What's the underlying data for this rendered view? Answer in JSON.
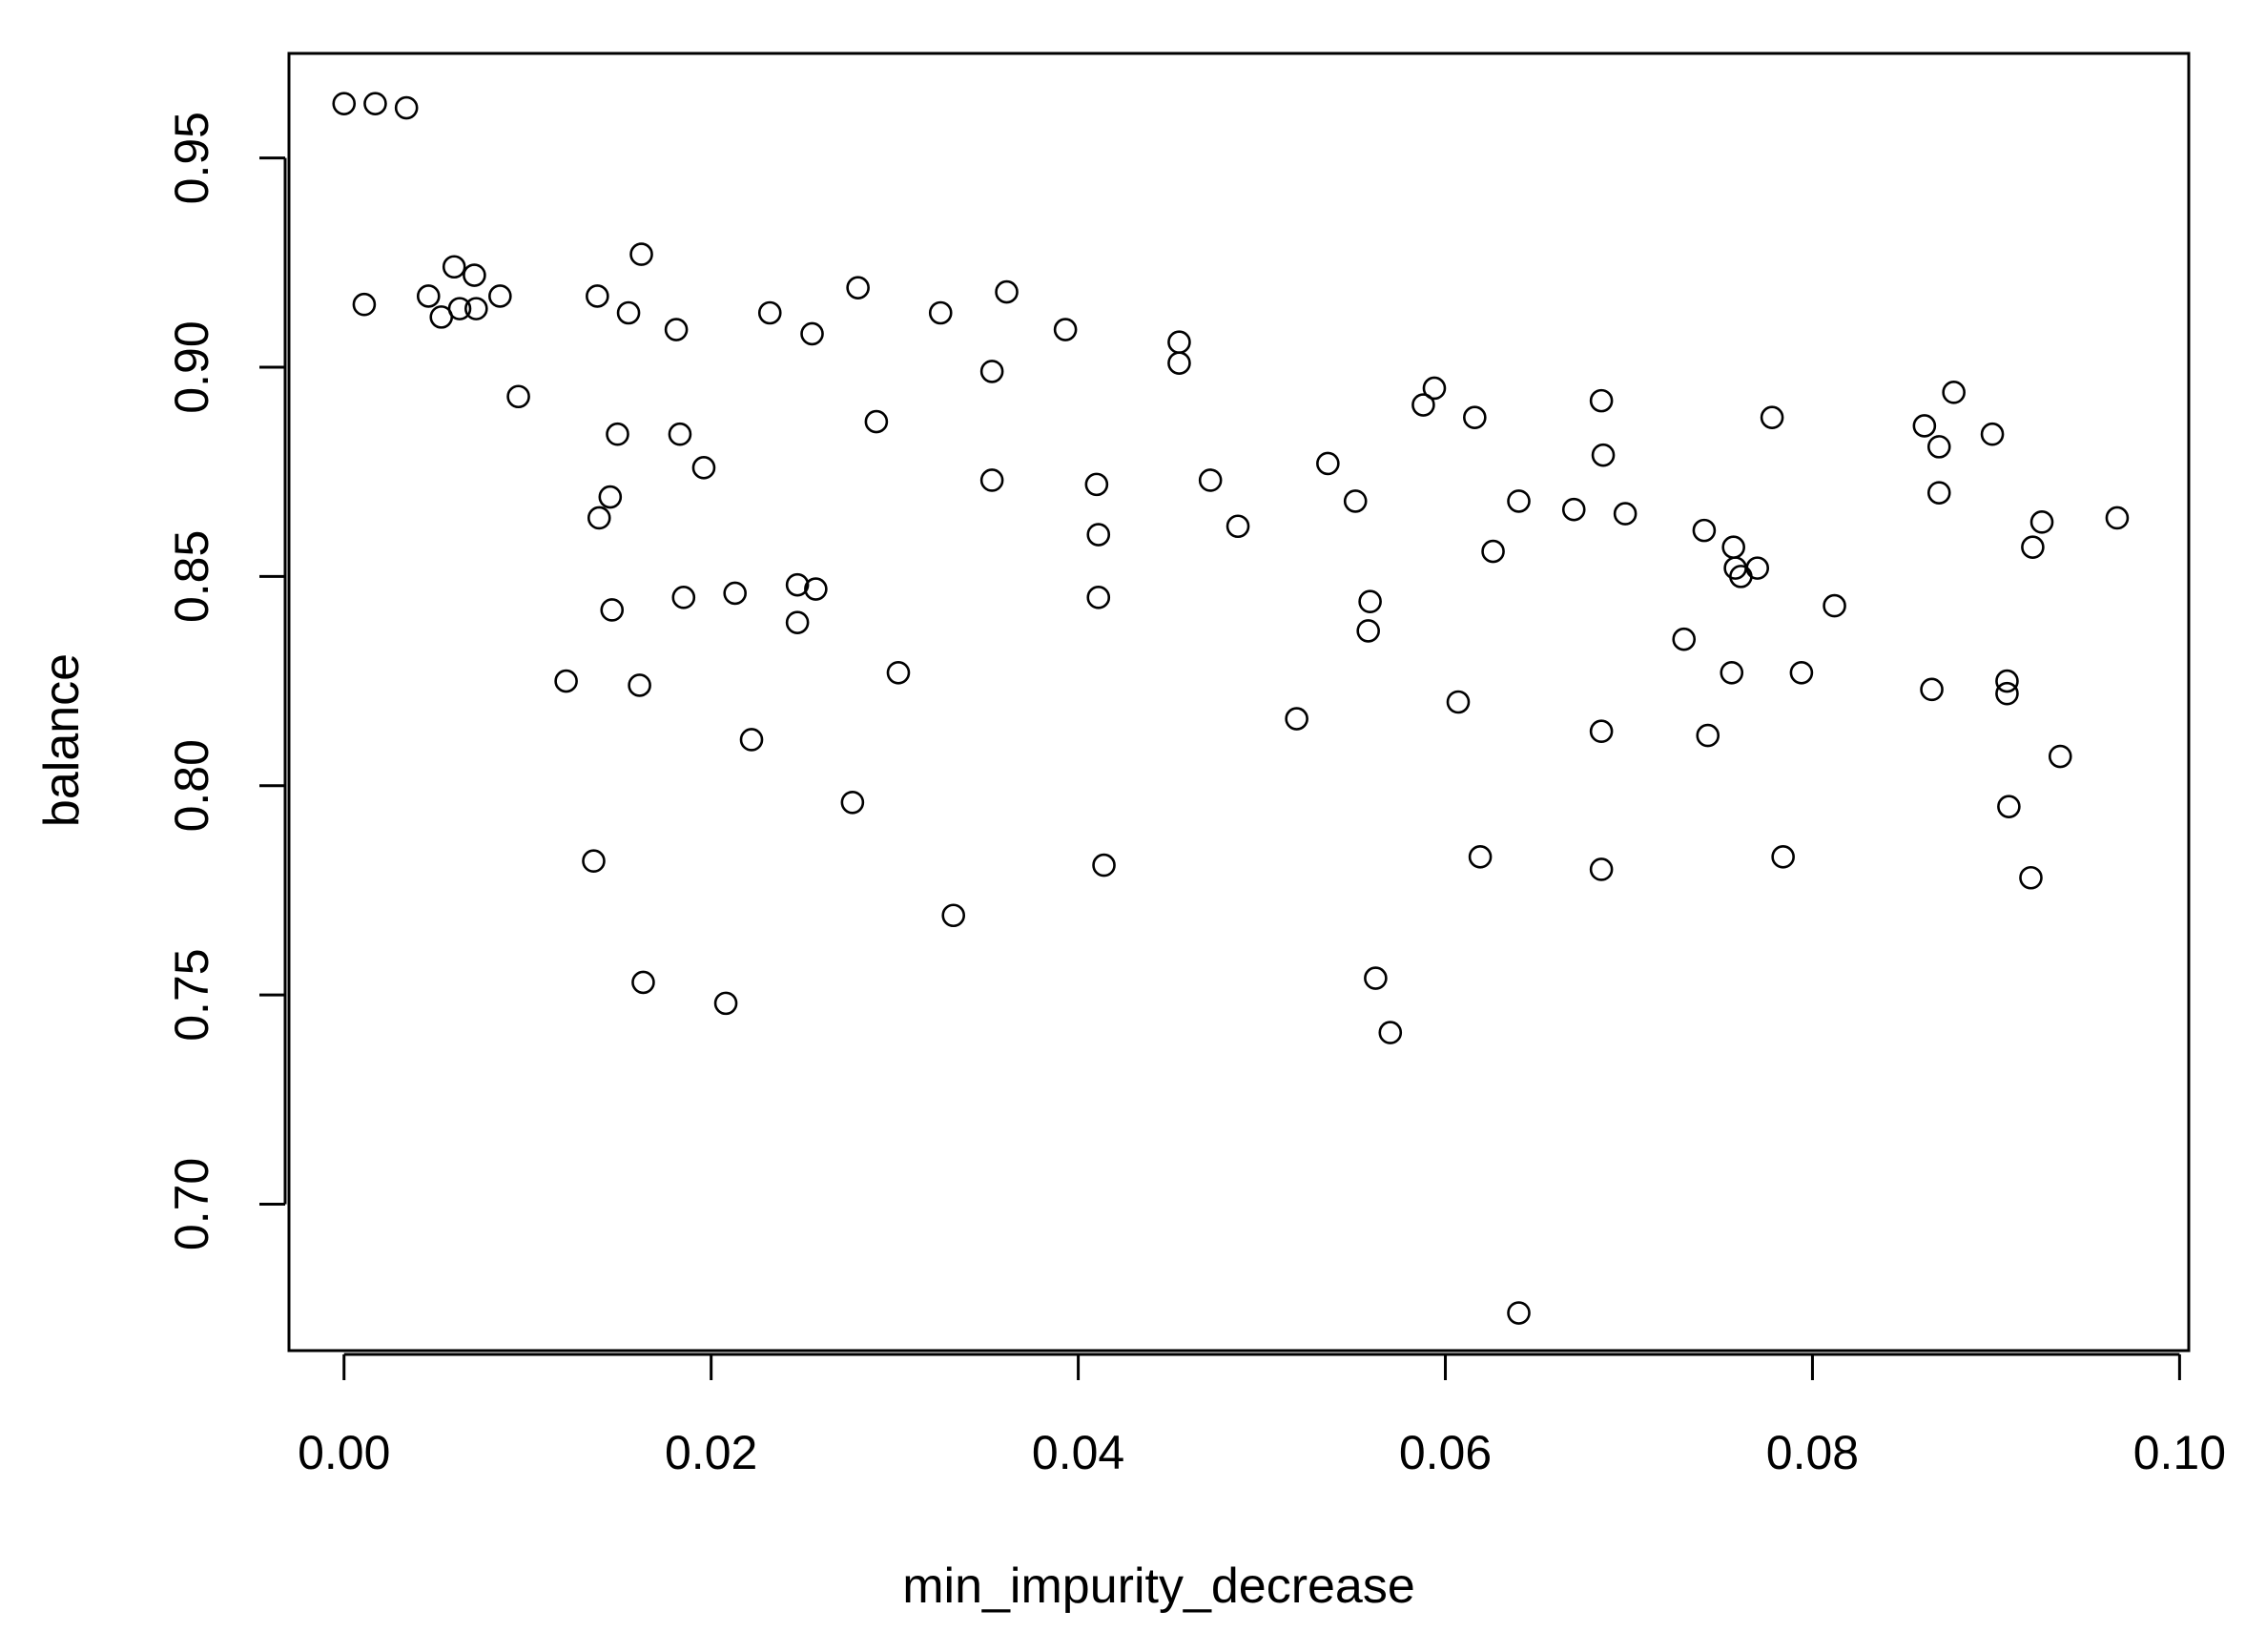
{
  "chart_data": {
    "type": "scatter",
    "title": "",
    "xlabel": "min_impurity_decrease",
    "ylabel": "balance",
    "xlim": [
      -0.003,
      0.1005
    ],
    "ylim": [
      0.665,
      0.975
    ],
    "x_ticks": [
      "0.00",
      "0.02",
      "0.04",
      "0.06",
      "0.08",
      "0.10"
    ],
    "y_ticks": [
      "0.70",
      "0.75",
      "0.80",
      "0.85",
      "0.90",
      "0.95"
    ],
    "grid": false,
    "legend": "none",
    "marker": "open-circle",
    "color": "#000000",
    "points": [
      [
        0.0,
        0.963
      ],
      [
        0.0017,
        0.963
      ],
      [
        0.0034,
        0.962
      ],
      [
        0.0011,
        0.915
      ],
      [
        0.0046,
        0.917
      ],
      [
        0.0053,
        0.912
      ],
      [
        0.006,
        0.924
      ],
      [
        0.0063,
        0.914
      ],
      [
        0.0071,
        0.922
      ],
      [
        0.0072,
        0.914
      ],
      [
        0.0085,
        0.917
      ],
      [
        0.0095,
        0.893
      ],
      [
        0.0121,
        0.825
      ],
      [
        0.0136,
        0.782
      ],
      [
        0.0138,
        0.917
      ],
      [
        0.0139,
        0.864
      ],
      [
        0.0145,
        0.869
      ],
      [
        0.0146,
        0.842
      ],
      [
        0.0149,
        0.884
      ],
      [
        0.0155,
        0.913
      ],
      [
        0.0161,
        0.824
      ],
      [
        0.0162,
        0.927
      ],
      [
        0.0163,
        0.753
      ],
      [
        0.0181,
        0.909
      ],
      [
        0.0183,
        0.884
      ],
      [
        0.0185,
        0.845
      ],
      [
        0.0196,
        0.876
      ],
      [
        0.0208,
        0.748
      ],
      [
        0.0213,
        0.846
      ],
      [
        0.0222,
        0.811
      ],
      [
        0.0232,
        0.913
      ],
      [
        0.0247,
        0.839
      ],
      [
        0.0247,
        0.848
      ],
      [
        0.0255,
        0.908
      ],
      [
        0.0257,
        0.847
      ],
      [
        0.0277,
        0.796
      ],
      [
        0.028,
        0.919
      ],
      [
        0.029,
        0.887
      ],
      [
        0.0302,
        0.827
      ],
      [
        0.0325,
        0.913
      ],
      [
        0.0332,
        0.769
      ],
      [
        0.0353,
        0.899
      ],
      [
        0.0353,
        0.873
      ],
      [
        0.0361,
        0.918
      ],
      [
        0.0393,
        0.909
      ],
      [
        0.041,
        0.872
      ],
      [
        0.0411,
        0.86
      ],
      [
        0.0411,
        0.845
      ],
      [
        0.0414,
        0.781
      ],
      [
        0.0455,
        0.906
      ],
      [
        0.0455,
        0.901
      ],
      [
        0.0472,
        0.873
      ],
      [
        0.0487,
        0.862
      ],
      [
        0.0519,
        0.816
      ],
      [
        0.0536,
        0.877
      ],
      [
        0.0551,
        0.868
      ],
      [
        0.0558,
        0.837
      ],
      [
        0.0559,
        0.844
      ],
      [
        0.0562,
        0.754
      ],
      [
        0.057,
        0.741
      ],
      [
        0.0588,
        0.891
      ],
      [
        0.0594,
        0.895
      ],
      [
        0.0607,
        0.82
      ],
      [
        0.0616,
        0.888
      ],
      [
        0.0619,
        0.783
      ],
      [
        0.0626,
        0.856
      ],
      [
        0.064,
        0.868
      ],
      [
        0.064,
        0.674
      ],
      [
        0.067,
        0.866
      ],
      [
        0.0685,
        0.892
      ],
      [
        0.0686,
        0.879
      ],
      [
        0.0685,
        0.813
      ],
      [
        0.0685,
        0.78
      ],
      [
        0.0698,
        0.865
      ],
      [
        0.073,
        0.835
      ],
      [
        0.0741,
        0.861
      ],
      [
        0.0743,
        0.812
      ],
      [
        0.0756,
        0.827
      ],
      [
        0.0757,
        0.857
      ],
      [
        0.0758,
        0.852
      ],
      [
        0.0761,
        0.85
      ],
      [
        0.077,
        0.852
      ],
      [
        0.0778,
        0.888
      ],
      [
        0.0784,
        0.783
      ],
      [
        0.0794,
        0.827
      ],
      [
        0.0812,
        0.843
      ],
      [
        0.0861,
        0.886
      ],
      [
        0.0865,
        0.823
      ],
      [
        0.0869,
        0.881
      ],
      [
        0.0869,
        0.87
      ],
      [
        0.0877,
        0.894
      ],
      [
        0.0898,
        0.884
      ],
      [
        0.0906,
        0.825
      ],
      [
        0.0906,
        0.822
      ],
      [
        0.0907,
        0.795
      ],
      [
        0.0919,
        0.778
      ],
      [
        0.092,
        0.857
      ],
      [
        0.0925,
        0.863
      ],
      [
        0.0935,
        0.807
      ],
      [
        0.0966,
        0.864
      ]
    ]
  }
}
